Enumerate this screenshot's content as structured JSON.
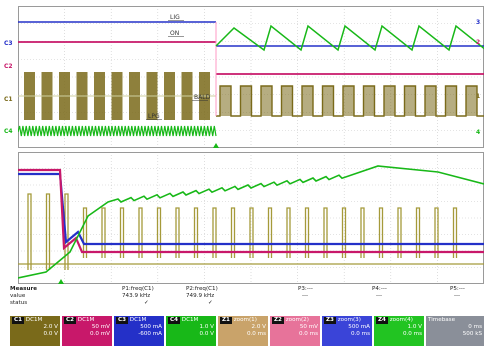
{
  "top_markers": {
    "left": [
      "C1",
      "C2",
      "C3",
      "C4"
    ],
    "right": [
      "1",
      "2",
      "3",
      "4"
    ]
  },
  "trace_labels": [
    "LIG",
    "ON",
    "LPG",
    "BALD"
  ],
  "measurements": {
    "header": "Measure",
    "row_labels": [
      "value",
      "status"
    ],
    "columns": [
      {
        "name": "P1:freq(C1)",
        "value": "743.9 kHz",
        "status": "✓"
      },
      {
        "name": "P2:freq(C1)",
        "value": "749.9 kHz",
        "status": "✓"
      },
      {
        "name": "P3:---",
        "value": "---",
        "status": ""
      },
      {
        "name": "P4:---",
        "value": "---",
        "status": ""
      },
      {
        "name": "P5:---",
        "value": "---",
        "status": ""
      }
    ]
  },
  "channels": [
    {
      "tag": "C1",
      "l1": "DC1M",
      "l2": "2.0 V",
      "l3": "0.0 V",
      "color": "#7a6a1a"
    },
    {
      "tag": "C2",
      "l1": "DC1M",
      "l2": "50 mV",
      "l3": "0.0 mV",
      "color": "#c8186a"
    },
    {
      "tag": "C3",
      "l1": "DC1M",
      "l2": "500 mA",
      "l3": "-600 mA",
      "color": "#2430c8"
    },
    {
      "tag": "C4",
      "l1": "DC1M",
      "l2": "1.0 V",
      "l3": "0.0 V",
      "color": "#18b818"
    },
    {
      "tag": "Z1",
      "l1": "zoom(1)",
      "l2": "2.0 V",
      "l3": "0.0 ms",
      "color": "#c9a36a"
    },
    {
      "tag": "Z2",
      "l1": "zoom(2)",
      "l2": "50 mV",
      "l3": "0.0 ms",
      "color": "#e7739a"
    },
    {
      "tag": "Z3",
      "l1": "zoom(3)",
      "l2": "500 mA",
      "l3": "0.0 ms",
      "color": "#3a44d8"
    },
    {
      "tag": "Z4",
      "l1": "zoom(4)",
      "l2": "1.0 V",
      "l3": "0.0 ms",
      "color": "#22c422"
    },
    {
      "tag": "TB",
      "l1": "Timebase",
      "l2": "0 ms",
      "l3": "500 kS",
      "color": "#8a8f99"
    }
  ],
  "colors": {
    "grid": "#c8c8c8",
    "ch1": "#7a6a1a",
    "ch2": "#c8186a",
    "ch3": "#2430c8",
    "ch4": "#18b818"
  }
}
